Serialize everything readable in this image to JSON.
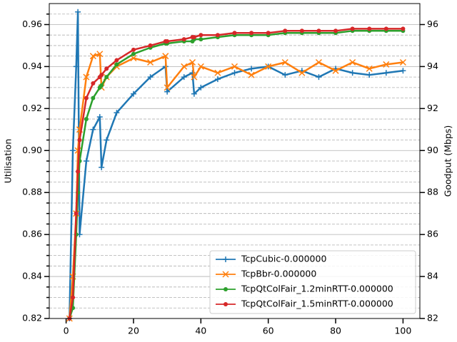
{
  "chart_data": {
    "type": "line",
    "ylabel": "Utilisation",
    "y2label": "Goodput (Mbps)",
    "x": [
      1,
      2,
      3,
      3.5,
      4,
      6,
      8,
      10,
      10.5,
      12,
      15,
      20,
      25,
      29.5,
      30,
      35,
      37.5,
      38,
      40,
      45,
      50,
      55,
      60,
      65,
      70,
      75,
      80,
      85,
      90,
      95,
      100
    ],
    "series": [
      {
        "name": "TcpCubic-0.000000",
        "color": "#1f77b4",
        "marker": "plus",
        "values": [
          0.82,
          0.9,
          0.94,
          0.966,
          0.86,
          0.895,
          0.91,
          0.916,
          0.892,
          0.905,
          0.918,
          0.927,
          0.935,
          0.94,
          0.928,
          0.935,
          0.937,
          0.927,
          0.93,
          0.934,
          0.937,
          0.939,
          0.94,
          0.936,
          0.938,
          0.935,
          0.939,
          0.937,
          0.936,
          0.937,
          0.938
        ]
      },
      {
        "name": "TcpBbr-0.000000",
        "color": "#ff7f0e",
        "marker": "x",
        "values": [
          0.82,
          0.84,
          0.87,
          0.9,
          0.91,
          0.935,
          0.945,
          0.946,
          0.93,
          0.935,
          0.94,
          0.944,
          0.942,
          0.945,
          0.93,
          0.94,
          0.942,
          0.935,
          0.94,
          0.937,
          0.94,
          0.936,
          0.94,
          0.942,
          0.937,
          0.942,
          0.938,
          0.942,
          0.939,
          0.941,
          0.942
        ]
      },
      {
        "name": "TcpQtColFair_1.2minRTT-0.000000",
        "color": "#2ca02c",
        "marker": "dot",
        "values": [
          0.82,
          0.825,
          0.86,
          0.88,
          0.895,
          0.915,
          0.925,
          0.93,
          0.931,
          0.935,
          0.941,
          0.946,
          0.949,
          0.951,
          0.951,
          0.952,
          0.952,
          0.953,
          0.953,
          0.954,
          0.955,
          0.955,
          0.955,
          0.956,
          0.956,
          0.956,
          0.956,
          0.957,
          0.957,
          0.957,
          0.957
        ]
      },
      {
        "name": "TcpQtColFair_1.5minRTT-0.000000",
        "color": "#d62728",
        "marker": "dot",
        "values": [
          0.82,
          0.83,
          0.87,
          0.89,
          0.905,
          0.925,
          0.932,
          0.935,
          0.936,
          0.939,
          0.943,
          0.948,
          0.95,
          0.952,
          0.952,
          0.953,
          0.954,
          0.954,
          0.955,
          0.955,
          0.956,
          0.956,
          0.956,
          0.957,
          0.957,
          0.957,
          0.957,
          0.958,
          0.958,
          0.958,
          0.958
        ]
      }
    ],
    "xlim": [
      -5,
      105
    ],
    "xticks": [
      0,
      20,
      40,
      60,
      80,
      100
    ],
    "ylim": [
      0.82,
      0.97
    ],
    "yticks": [
      0.82,
      0.84,
      0.86,
      0.88,
      {
        "value": 0.9,
        "label": "0.90"
      },
      0.92,
      0.94,
      0.96
    ],
    "yminorticks": [
      0.825,
      0.83,
      0.835,
      0.845,
      0.85,
      0.855,
      0.865,
      0.87,
      0.875,
      0.885,
      0.89,
      0.895,
      0.905,
      0.91,
      0.915,
      0.925,
      0.93,
      0.935,
      0.945,
      0.95,
      0.955,
      0.965
    ],
    "y2lim": [
      82,
      97
    ],
    "y2ticks": [
      82,
      84,
      86,
      88,
      90,
      92,
      94,
      96
    ],
    "grid": true,
    "legend": "lower right"
  }
}
